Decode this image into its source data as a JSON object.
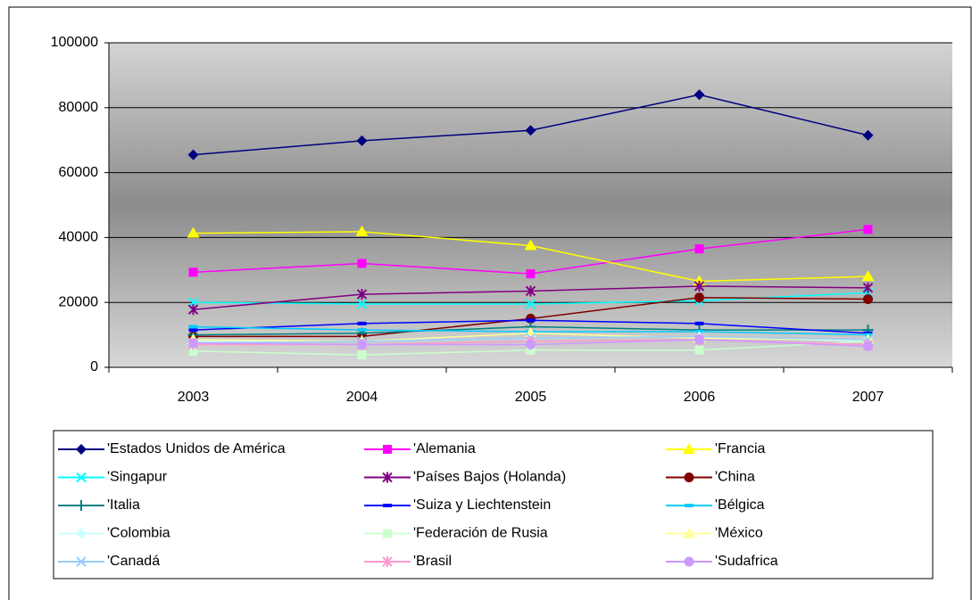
{
  "chart_data": {
    "type": "line",
    "categories": [
      "2003",
      "2004",
      "2005",
      "2006",
      "2007"
    ],
    "ylim": [
      0,
      100000
    ],
    "yticks": [
      0,
      20000,
      40000,
      60000,
      80000,
      100000
    ],
    "grid": true,
    "series": [
      {
        "name": "'Estados Unidos de América",
        "color": "#000080",
        "marker": "diamond",
        "values": [
          65500,
          69800,
          73000,
          84000,
          71500
        ]
      },
      {
        "name": "'Alemania",
        "color": "#ff00ff",
        "marker": "square",
        "values": [
          29300,
          32000,
          28800,
          36500,
          42500
        ]
      },
      {
        "name": "'Francia",
        "color": "#ffff00",
        "marker": "triangle",
        "values": [
          41300,
          41800,
          37500,
          26500,
          28000
        ]
      },
      {
        "name": "'Singapur",
        "color": "#00ffff",
        "marker": "x",
        "values": [
          20000,
          19500,
          19500,
          20500,
          23000
        ]
      },
      {
        "name": "'Países Bajos (Holanda)",
        "color": "#800080",
        "marker": "star",
        "values": [
          17800,
          22500,
          23500,
          25000,
          24500
        ]
      },
      {
        "name": "'China",
        "color": "#800000",
        "marker": "circle",
        "values": [
          9500,
          9500,
          15000,
          21500,
          21000
        ]
      },
      {
        "name": "'Italia",
        "color": "#008080",
        "marker": "plus",
        "values": [
          10000,
          10500,
          12500,
          11500,
          11500
        ]
      },
      {
        "name": "'Suiza y Liechtenstein",
        "color": "#0000ff",
        "marker": "dash",
        "values": [
          11500,
          13500,
          14500,
          13500,
          10500
        ]
      },
      {
        "name": "'Bélgica",
        "color": "#00ccff",
        "marker": "dash",
        "values": [
          12500,
          11500,
          11000,
          11000,
          10000
        ]
      },
      {
        "name": "'Colombia",
        "color": "#ccffff",
        "marker": "diamond",
        "values": [
          8000,
          8000,
          9000,
          9500,
          8000
        ]
      },
      {
        "name": "'Federación de Rusia",
        "color": "#ccffcc",
        "marker": "square",
        "values": [
          5000,
          3800,
          5300,
          5300,
          8000
        ]
      },
      {
        "name": "'México",
        "color": "#ffff99",
        "marker": "triangle",
        "values": [
          8500,
          8000,
          10500,
          9000,
          8500
        ]
      },
      {
        "name": "'Canadá",
        "color": "#99ccff",
        "marker": "x",
        "values": [
          7500,
          8000,
          9000,
          9500,
          8500
        ]
      },
      {
        "name": "'Brasil",
        "color": "#ff99cc",
        "marker": "star",
        "values": [
          7000,
          7000,
          8000,
          8500,
          7000
        ]
      },
      {
        "name": "'Sudafrica",
        "color": "#cc99ff",
        "marker": "circle",
        "values": [
          7500,
          7000,
          7000,
          8500,
          6500
        ]
      }
    ]
  }
}
